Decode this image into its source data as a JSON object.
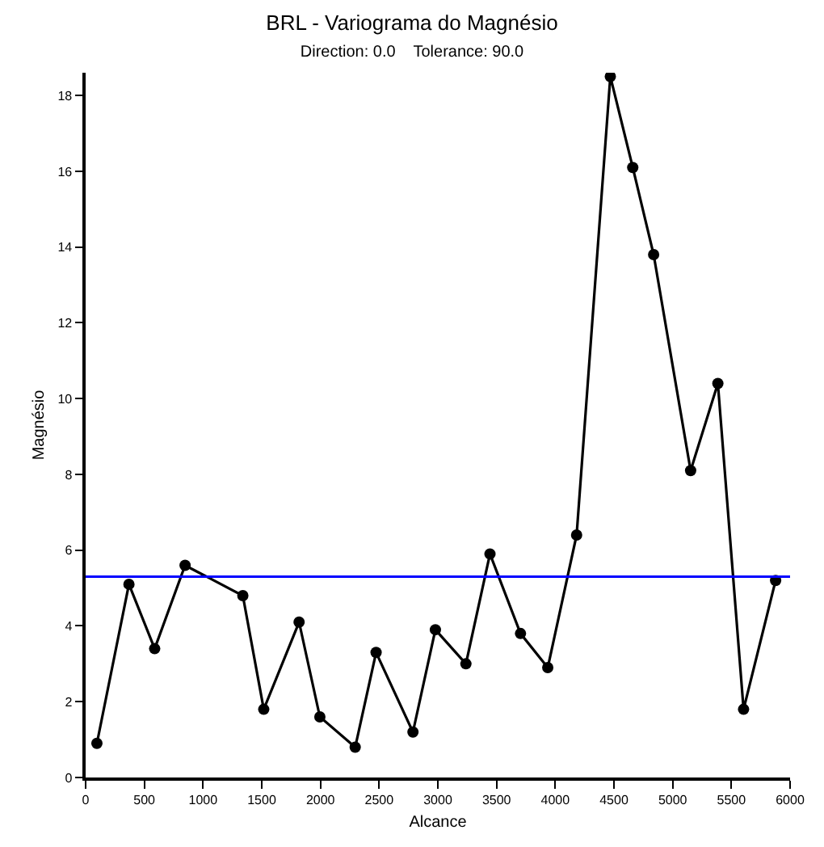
{
  "chart_data": {
    "type": "line",
    "title": "BRL - Variograma do Magnésio",
    "subtitle": "Direction: 0.0    Tolerance: 90.0",
    "xlabel": "Alcance",
    "ylabel": "Magnésio",
    "x": [
      96,
      369,
      588,
      847,
      1339,
      1517,
      1818,
      1995,
      2296,
      2474,
      2788,
      2979,
      3239,
      3444,
      3704,
      3936,
      4182,
      4469,
      4660,
      4838,
      5153,
      5385,
      5604,
      5877
    ],
    "series": [
      {
        "color": "#000000",
        "values": [
          0.9,
          5.1,
          3.4,
          5.6,
          4.8,
          1.8,
          4.1,
          1.6,
          0.8,
          3.3,
          1.2,
          3.9,
          3.0,
          5.9,
          3.8,
          2.9,
          6.4,
          18.5,
          16.1,
          13.8,
          8.1,
          10.4,
          1.8,
          5.2
        ]
      }
    ],
    "xlim": [
      0,
      6000
    ],
    "xticks": [
      0,
      500,
      1000,
      1500,
      2000,
      2500,
      3000,
      3500,
      4000,
      4500,
      5000,
      5500,
      6000
    ],
    "ylim": [
      0,
      18.6
    ],
    "yticks": [
      0,
      2,
      4,
      6,
      8,
      10,
      12,
      14,
      16,
      18
    ],
    "ref_lines": [
      {
        "axis": "y",
        "value": 5.3,
        "color": "#0000ff"
      }
    ],
    "grid": false,
    "marker": "circle",
    "line_style": "solid"
  }
}
